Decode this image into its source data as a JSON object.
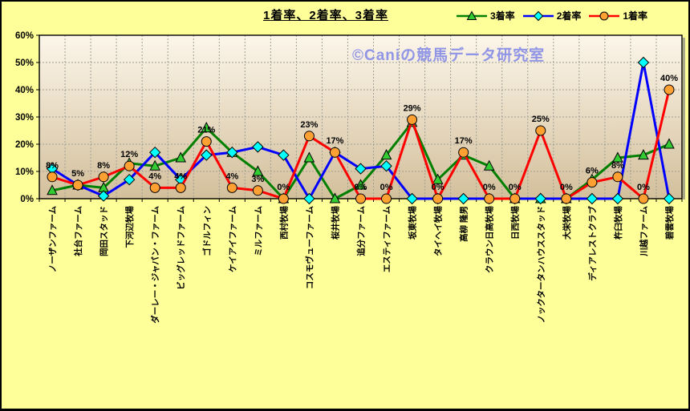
{
  "page": {
    "background": "#FFFF99",
    "border_color": "#000000"
  },
  "title": "1着率、2着率、3着率",
  "watermark": {
    "text": "©Caniの競馬データ研究室",
    "color": "#9095E5"
  },
  "chart_data": {
    "type": "line",
    "title": "1着率、2着率、3着率",
    "categories": [
      "ノーザンファーム",
      "社台ファーム",
      "岡田スタッド",
      "下河辺牧場",
      "ダーレー・ジャパン・ファーム",
      "ビッグレッドファーム",
      "ゴドルフィン",
      "ケイアイファーム",
      "ミルファーム",
      "西村牧場",
      "コスモヴューファーム",
      "桜井牧場",
      "追分ファーム",
      "エスティファーム",
      "坂東牧場",
      "タイヘイ牧場",
      "高柳 隆男",
      "クラウン日高牧場",
      "日西牧場",
      "ノックタータンハウススタッド",
      "大栄牧場",
      "ディアレストクラブ",
      "杵臼牧場",
      "川越ファーム",
      "碧雲牧場"
    ],
    "series": [
      {
        "name": "3着率",
        "marker": "triangle",
        "line_color": "#008000",
        "marker_color": "#33CC33",
        "values": [
          3,
          5,
          4,
          13,
          12,
          15,
          26,
          17,
          10,
          0,
          15,
          0,
          5,
          16,
          28,
          7,
          16,
          12,
          0,
          0,
          0,
          7,
          15,
          16,
          20
        ],
        "data_labels": false
      },
      {
        "name": "2着率",
        "marker": "diamond",
        "line_color": "#0000FF",
        "marker_color": "#00FFFF",
        "values": [
          11,
          5,
          1,
          7,
          17,
          7,
          16,
          17,
          19,
          16,
          0,
          17,
          11,
          12,
          0,
          0,
          0,
          0,
          0,
          0,
          0,
          0,
          0,
          50,
          0
        ],
        "data_labels": false
      },
      {
        "name": "1着率",
        "marker": "circle",
        "line_color": "#FF0000",
        "marker_color": "#FFA033",
        "values": [
          8,
          5,
          8,
          12,
          4,
          4,
          21,
          4,
          3,
          0,
          23,
          17,
          0,
          0,
          29,
          0,
          17,
          0,
          0,
          25,
          0,
          6,
          8,
          0,
          40
        ],
        "data_labels": true,
        "label_texts": [
          "8%",
          "5%",
          "8%",
          "12%",
          "4%",
          "4%",
          "21%",
          "4%",
          "3%",
          "0%",
          "23%",
          "17%",
          "0%",
          "0%",
          "29%",
          "0%",
          "17%",
          "0%",
          "0%",
          "25%",
          "0%",
          "6%",
          "8%",
          "0%",
          "40%"
        ]
      }
    ],
    "ylim": [
      0,
      60
    ],
    "y_tick_labels": [
      "0%",
      "10%",
      "20%",
      "30%",
      "40%",
      "50%",
      "60%"
    ],
    "grid": "dashed",
    "grid_color": "#A0A097",
    "plot_bg_gradient": [
      "#FCF6EA",
      "#D3BF9B"
    ],
    "legend_position": "top-right",
    "xlabel": "",
    "ylabel": ""
  }
}
